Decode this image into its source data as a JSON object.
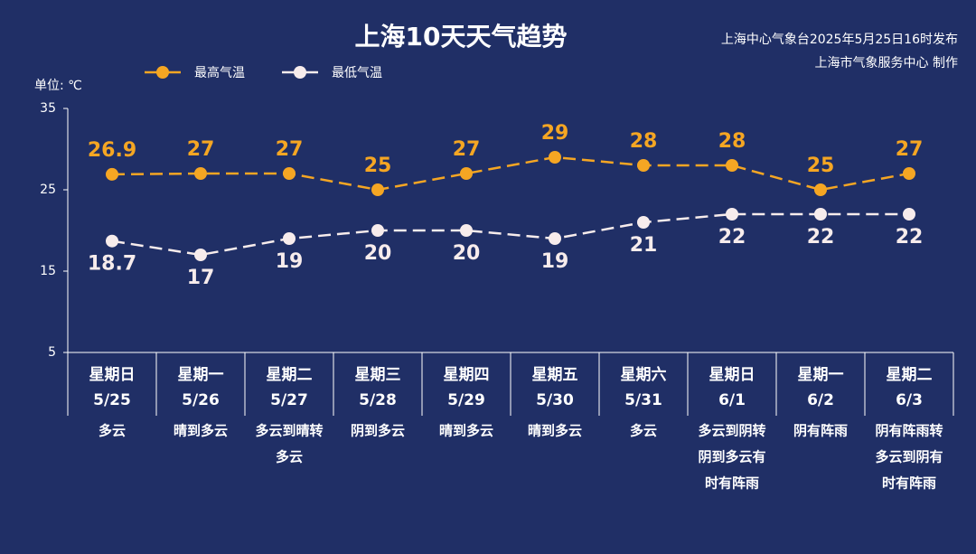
{
  "chart_data": {
    "type": "line",
    "title": "上海10天天气趋势",
    "source": "上海中心气象台2025年5月25日16时发布",
    "credit": "上海市气象服务中心 制作",
    "y_label": "单位: ℃",
    "categories": [
      "5/25",
      "5/26",
      "5/27",
      "5/28",
      "5/29",
      "5/30",
      "5/31",
      "6/1",
      "6/2",
      "6/3"
    ],
    "weekdays": [
      "星期日",
      "星期一",
      "星期二",
      "星期三",
      "星期四",
      "星期五",
      "星期六",
      "星期日",
      "星期一",
      "星期二"
    ],
    "weather": [
      [
        "多云"
      ],
      [
        "晴到多云"
      ],
      [
        "多云到晴转",
        "多云"
      ],
      [
        "阴到多云"
      ],
      [
        "晴到多云"
      ],
      [
        "晴到多云"
      ],
      [
        "多云"
      ],
      [
        "多云到阴转",
        "阴到多云有",
        "时有阵雨"
      ],
      [
        "阴有阵雨"
      ],
      [
        "阴有阵雨转",
        "多云到阴有",
        "时有阵雨"
      ]
    ],
    "series": [
      {
        "name": "最高气温",
        "color": "#f5a623",
        "values": [
          26.9,
          27,
          27,
          25,
          27,
          29,
          28,
          28,
          25,
          27
        ]
      },
      {
        "name": "最低气温",
        "color": "#f7ecec",
        "values": [
          18.7,
          17,
          19,
          20,
          20,
          19,
          21,
          22,
          22,
          22
        ]
      }
    ],
    "ylim": [
      5,
      35
    ],
    "yticks": [
      5,
      15,
      25,
      35
    ],
    "grid": false
  }
}
